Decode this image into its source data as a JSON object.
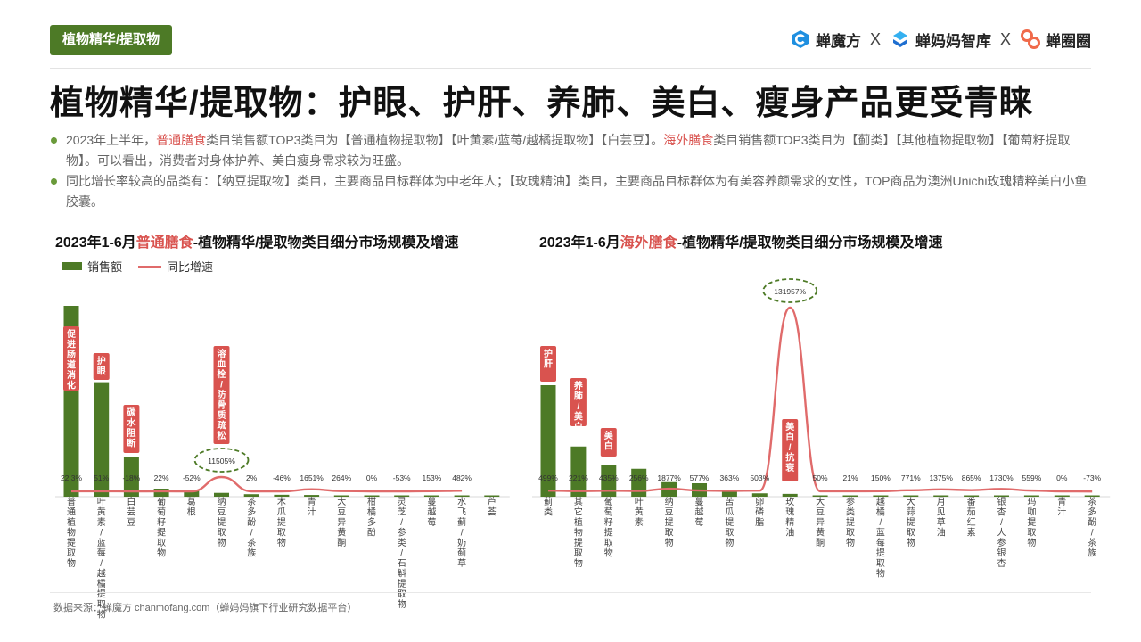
{
  "header": {
    "tag": "植物精华/提取物",
    "logos": [
      {
        "name": "蝉魔方",
        "icon": "chanmofang-logo-icon",
        "color": "#1f8fe0"
      },
      {
        "name": "蝉妈妈智库",
        "icon": "chanmama-logo-icon",
        "color": "#1f8fe0"
      },
      {
        "name": "蝉圈圈",
        "icon": "chanquanquan-logo-icon",
        "color": "#f06a4a"
      }
    ],
    "separator": "X"
  },
  "title": "植物精华/提取物：护眼、护肝、养肺、美白、瘦身产品更受青睐",
  "bullets": [
    {
      "parts": [
        {
          "text": "2023年上半年，",
          "hl": false
        },
        {
          "text": "普通膳食",
          "hl": true
        },
        {
          "text": "类目销售额TOP3类目为【普通植物提取物】【叶黄素/蓝莓/越橘提取物】【白芸豆】。",
          "hl": false
        },
        {
          "text": "海外膳食",
          "hl": true
        },
        {
          "text": "类目销售额TOP3类目为【蓟类】【其他植物提取物】【葡萄籽提取物】。可以看出，消费者对身体护养、美白瘦身需求较为旺盛。",
          "hl": false
        }
      ]
    },
    {
      "parts": [
        {
          "text": "同比增长率较高的品类有：【纳豆提取物】类目，主要商品目标群体为中老年人；【玫瑰精油】类目，主要商品目标群体为有美容养颜需求的女性，TOP商品为澳洲Unichi玫瑰精粹美白小鱼胶囊。",
          "hl": false
        }
      ]
    }
  ],
  "legend": {
    "bar": "销售额",
    "line": "同比增速"
  },
  "footer": "数据来源：蝉魔方 chanmofang.com（蝉妈妈旗下行业研究数据平台）",
  "colors": {
    "bar": "#4d7a26",
    "line": "#e06b6b",
    "callout": "#d9534f",
    "highlight": "#d9534f",
    "tag": "#4d7a26"
  },
  "chart_data": [
    {
      "type": "bar",
      "title_prefix": "2023年1-6月",
      "title_highlight": "普通膳食",
      "title_suffix": "-植物精华/提取物类目细分市场规模及增速",
      "categories": [
        "普通植物提取物",
        "叶黄素/蓝莓/越橘提取物",
        "白芸豆",
        "葡萄籽提取物",
        "葛根",
        "纳豆提取物",
        "茶多酚/茶族",
        "木瓜提取物",
        "青汁",
        "大豆异黄酮",
        "柑橘多酚",
        "灵芝/参类/石斛提取物",
        "蔓越莓",
        "水飞蓟/奶蓟草",
        "芦荟"
      ],
      "series": [
        {
          "name": "销售额",
          "type": "bar",
          "values": [
            100,
            60,
            21,
            4.2,
            3,
            2,
            1.3,
            1,
            0.9,
            0.7,
            0.5,
            0.4,
            0.35,
            0.3,
            0.2
          ]
        },
        {
          "name": "同比增速",
          "type": "line",
          "values": [
            22.3,
            51,
            -18,
            22,
            -52,
            11505,
            2,
            -46,
            1651,
            264,
            0,
            -53,
            153,
            482,
            null
          ],
          "labels": [
            "22.3%",
            "51%",
            "-18%",
            "22%",
            "-52%",
            "11505%",
            "2%",
            "-46%",
            "1651%",
            "264%",
            "0%",
            "-53%",
            "153%",
            "482%",
            ""
          ]
        }
      ],
      "callouts": [
        {
          "index": 0,
          "text": "促进肠道消化"
        },
        {
          "index": 1,
          "text": "护眼"
        },
        {
          "index": 2,
          "text": "碳水阻断"
        },
        {
          "index": 5,
          "text": "溶血栓/防骨质疏松"
        }
      ],
      "highlight_label_index": 5,
      "y_max_bar": 100,
      "y_max_line": 25000
    },
    {
      "type": "bar",
      "title_prefix": "2023年1-6月",
      "title_highlight": "海外膳食",
      "title_suffix": "-植物精华/提取物类目细分市场规模及增速",
      "categories": [
        "蓟类",
        "其它植物提取物",
        "葡萄籽提取物",
        "叶黄素",
        "纳豆提取物",
        "蔓越莓",
        "苦瓜提取物",
        "卵磷脂",
        "玫瑰精油",
        "大豆异黄酮",
        "参类提取物",
        "越橘/蓝莓提取物",
        "大蒜提取物",
        "月见草油",
        "番茄红素",
        "银杏/人参银杏",
        "玛咖提取物",
        "青汁",
        "茶多酚/茶族"
      ],
      "series": [
        {
          "name": "销售额",
          "type": "bar",
          "values": [
            100,
            45,
            28,
            25,
            13,
            12,
            5,
            3,
            2.5,
            1,
            0.9,
            0.7,
            0.6,
            0.5,
            0.45,
            0.4,
            0.3,
            0.25,
            0.2
          ]
        },
        {
          "name": "同比增速",
          "type": "line",
          "values": [
            499,
            221,
            435,
            256,
            1877,
            577,
            363,
            503,
            131957,
            50,
            21,
            150,
            771,
            1375,
            865,
            1730,
            559,
            0,
            -73
          ],
          "labels": [
            "499%",
            "221%",
            "435%",
            "256%",
            "1877%",
            "577%",
            "363%",
            "503%",
            "131957%",
            "50%",
            "21%",
            "150%",
            "771%",
            "1375%",
            "865%",
            "1730%",
            "559%",
            "0%",
            "-73%"
          ]
        }
      ],
      "callouts": [
        {
          "index": 0,
          "text": "护肝"
        },
        {
          "index": 1,
          "text": "养肺/美白"
        },
        {
          "index": 2,
          "text": "美白"
        },
        {
          "index": 8,
          "text": "美白/抗衰"
        }
      ],
      "highlight_label_index": 8,
      "y_max_bar": 100,
      "y_max_line": 131957
    }
  ]
}
